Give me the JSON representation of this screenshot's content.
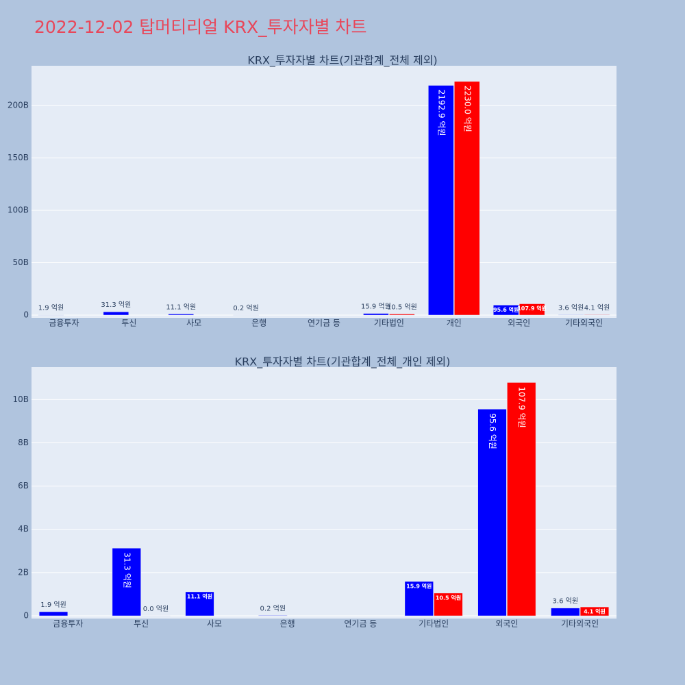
{
  "title": "2022-12-02 탑머티리얼 KRX_투자자별 차트",
  "chart_data": [
    {
      "type": "bar",
      "title": "KRX_투자자별 차트(기관합계_전체 제외)",
      "categories": [
        "금융투자",
        "투신",
        "사모",
        "은행",
        "연기금 등",
        "기타법인",
        "개인",
        "외국인",
        "기타외국인"
      ],
      "series": [
        {
          "color": "#0000ff",
          "values": [
            0.19,
            3.13,
            1.11,
            0.02,
            null,
            1.59,
            219.29,
            9.56,
            0.36
          ],
          "value_labels": [
            "1.9 억원",
            "31.3 억원",
            "11.1 억원",
            "0.2 억원",
            null,
            "15.9 억원",
            "2192.9 억원",
            "95.6 억원",
            "3.6 억원"
          ]
        },
        {
          "color": "#ff0000",
          "values": [
            null,
            null,
            null,
            null,
            null,
            1.05,
            223.0,
            10.79,
            0.41
          ],
          "value_labels": [
            null,
            null,
            null,
            null,
            null,
            "10.5 억원",
            "2230.0 억원",
            "107.9 억원",
            "4.1 억원"
          ]
        }
      ],
      "ylim": [
        0,
        238
      ],
      "yticks": [
        0,
        {
          "value": 50,
          "label": "50B"
        },
        {
          "value": 100,
          "label": "100B"
        },
        {
          "value": 150,
          "label": "150B"
        },
        {
          "value": 200,
          "label": "200B"
        }
      ],
      "grid": true
    },
    {
      "type": "bar",
      "title": "KRX_투자자별 차트(기관합계_전체_개인 제외)",
      "categories": [
        "금융투자",
        "투신",
        "사모",
        "은행",
        "연기금 등",
        "기타법인",
        "외국인",
        "기타외국인"
      ],
      "series": [
        {
          "color": "#0000ff",
          "values": [
            0.19,
            3.13,
            1.11,
            0.02,
            null,
            1.59,
            9.56,
            0.36
          ],
          "value_labels": [
            "1.9 억원",
            "31.3 억원",
            "11.1 억원",
            "0.2 억원",
            null,
            "15.9 억원",
            "95.6 억원",
            "3.6 억원"
          ]
        },
        {
          "color": "#ff0000",
          "values": [
            null,
            0.0,
            null,
            null,
            null,
            1.05,
            10.79,
            0.41
          ],
          "value_labels": [
            null,
            "0.0 억원",
            null,
            null,
            null,
            "10.5 억원",
            "107.9 억원",
            "4.1 억원"
          ]
        }
      ],
      "ylim": [
        0,
        11.5
      ],
      "yticks": [
        0,
        {
          "value": 2,
          "label": "2B"
        },
        {
          "value": 4,
          "label": "4B"
        },
        {
          "value": 6,
          "label": "6B"
        },
        {
          "value": 8,
          "label": "8B"
        },
        {
          "value": 10,
          "label": "10B"
        }
      ],
      "grid": true
    }
  ]
}
